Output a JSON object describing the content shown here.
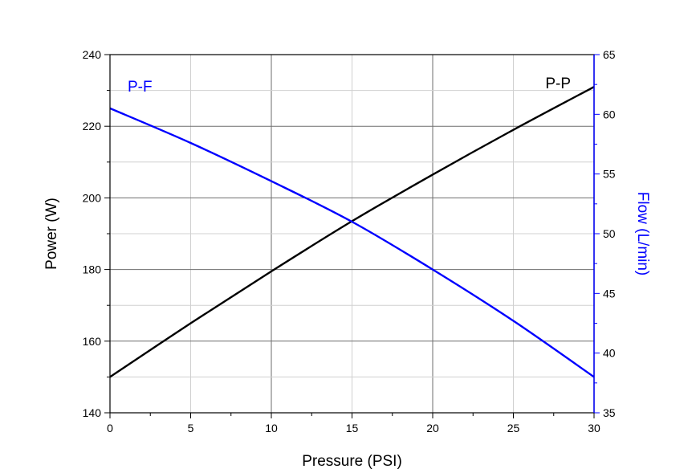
{
  "chart_data": {
    "type": "line",
    "xlabel": "Pressure (PSI)",
    "ylabel": "Power (W)",
    "y2label": "Flow (L/min)",
    "xlim": [
      0,
      30
    ],
    "ylim": [
      140,
      240
    ],
    "y2lim": [
      35,
      65
    ],
    "xticks": [
      0,
      5,
      10,
      15,
      20,
      25,
      30
    ],
    "yticks": [
      140,
      160,
      180,
      200,
      220,
      240
    ],
    "y2ticks": [
      35,
      40,
      45,
      50,
      55,
      60,
      65
    ],
    "grid": true,
    "colors": {
      "power": "#000000",
      "flow": "#0000ff"
    },
    "series": [
      {
        "name": "P-P",
        "axis": "left",
        "color": "#000000",
        "x": [
          0,
          5,
          10,
          15,
          20,
          25,
          30
        ],
        "y": [
          150,
          165,
          179.5,
          193.5,
          206.5,
          219,
          231
        ]
      },
      {
        "name": "P-F",
        "axis": "right",
        "color": "#0000ff",
        "x": [
          0,
          5,
          10,
          15,
          20,
          25,
          30
        ],
        "y": [
          60.5,
          57.6,
          54.4,
          51,
          47,
          42.7,
          38
        ]
      }
    ],
    "annotations": [
      {
        "text": "P-F",
        "color": "#0000ff",
        "placement": "top-left"
      },
      {
        "text": "P-P",
        "color": "#000000",
        "placement": "top-right"
      }
    ]
  }
}
